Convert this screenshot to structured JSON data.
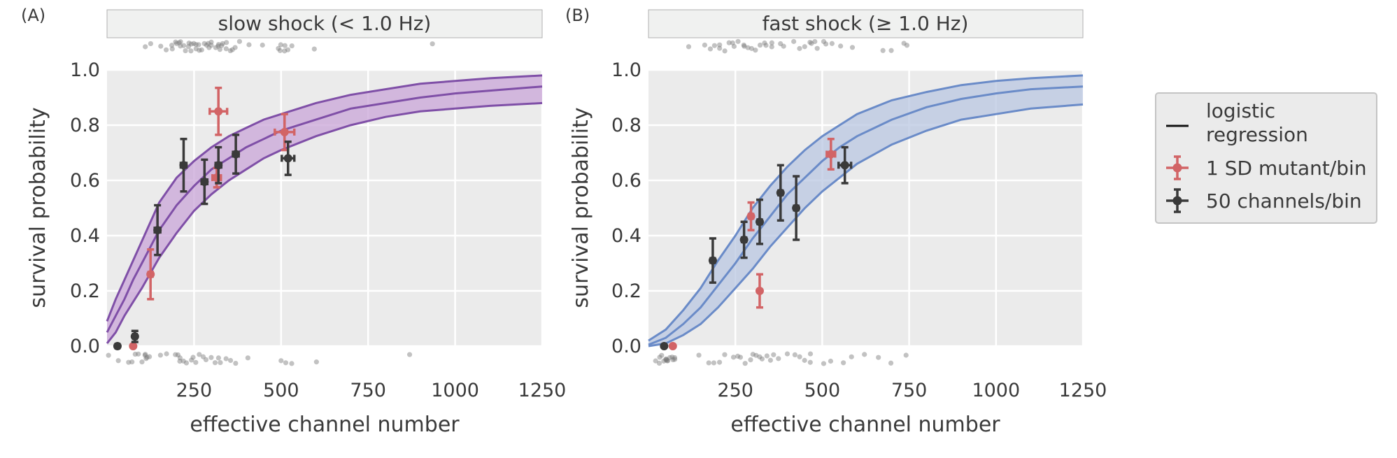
{
  "colors": {
    "panel_bg": "#ebebeb",
    "grid": "#ffffff",
    "strip_bg": "#f0f1f0",
    "purple_line": "#7f4fa7",
    "purple_fill": "#c9a5d8",
    "blue_line": "#6a8bc8",
    "blue_fill": "#b9c7e2",
    "red": "#d26466",
    "dark": "#3a3a3a",
    "raw_points": "#777777"
  },
  "legend": {
    "title": "",
    "items": [
      {
        "label_lines": [
          "logistic",
          "regression"
        ],
        "marker": "line",
        "color": "#111111"
      },
      {
        "label_lines": [
          "1 SD mutant/bin"
        ],
        "marker": "errorbar-point",
        "color": "#d26466"
      },
      {
        "label_lines": [
          "50 channels/bin"
        ],
        "marker": "errorbar-point",
        "color": "#3a3a3a"
      }
    ]
  },
  "chart_data": [
    {
      "type": "scatter",
      "panel_tag": "(A)",
      "strip_title": "slow shock (< 1.0 Hz)",
      "xlabel": "effective channel number",
      "ylabel": "survival probability",
      "xlim": [
        0,
        1250
      ],
      "ylim": [
        0,
        1.0
      ],
      "xticks": [
        250,
        500,
        750,
        1000,
        1250
      ],
      "yticks": [
        0.0,
        0.2,
        0.4,
        0.6,
        0.8,
        1.0
      ],
      "grid": true,
      "series_color": "purple",
      "logistic_fit": {
        "x": [
          0,
          25,
          50,
          75,
          100,
          150,
          200,
          250,
          300,
          350,
          400,
          450,
          500,
          600,
          700,
          800,
          900,
          1000,
          1100,
          1250
        ],
        "y": [
          0.05,
          0.11,
          0.17,
          0.24,
          0.3,
          0.42,
          0.51,
          0.58,
          0.64,
          0.68,
          0.72,
          0.75,
          0.78,
          0.82,
          0.86,
          0.88,
          0.9,
          0.915,
          0.925,
          0.94
        ],
        "lower": [
          0.01,
          0.05,
          0.11,
          0.16,
          0.21,
          0.32,
          0.41,
          0.49,
          0.55,
          0.6,
          0.64,
          0.68,
          0.71,
          0.76,
          0.8,
          0.83,
          0.85,
          0.86,
          0.87,
          0.88
        ],
        "upper": [
          0.09,
          0.17,
          0.24,
          0.31,
          0.38,
          0.52,
          0.61,
          0.67,
          0.72,
          0.76,
          0.79,
          0.82,
          0.84,
          0.88,
          0.91,
          0.93,
          0.95,
          0.96,
          0.97,
          0.98
        ]
      },
      "binned_1sd": [
        {
          "x": 75,
          "y": 0.0,
          "yerr": 0.0,
          "xerr": 0
        },
        {
          "x": 125,
          "y": 0.26,
          "yerr": 0.09,
          "xerr": 6
        },
        {
          "x": 320,
          "y": 0.85,
          "yerr": 0.085,
          "xerr": 25
        },
        {
          "x": 315,
          "y": 0.61,
          "yerr": 0.035,
          "xerr": 12
        },
        {
          "x": 510,
          "y": 0.775,
          "yerr": 0.065,
          "xerr": 28
        }
      ],
      "binned_50ch": [
        {
          "x": 30,
          "y": 0.0,
          "yerr": 0.0,
          "xerr": 5
        },
        {
          "x": 80,
          "y": 0.035,
          "yerr": 0.02,
          "xerr": 5
        },
        {
          "x": 145,
          "y": 0.42,
          "yerr": 0.09,
          "xerr": 8
        },
        {
          "x": 220,
          "y": 0.655,
          "yerr": 0.095,
          "xerr": 8
        },
        {
          "x": 280,
          "y": 0.595,
          "yerr": 0.08,
          "xerr": 8
        },
        {
          "x": 320,
          "y": 0.655,
          "yerr": 0.065,
          "xerr": 8
        },
        {
          "x": 370,
          "y": 0.695,
          "yerr": 0.07,
          "xerr": 8
        },
        {
          "x": 520,
          "y": 0.68,
          "yerr": 0.06,
          "xerr": 18
        }
      ],
      "raw_top_x": [
        110,
        130,
        155,
        175,
        185,
        190,
        195,
        200,
        205,
        210,
        215,
        220,
        225,
        230,
        235,
        240,
        245,
        250,
        255,
        260,
        265,
        270,
        275,
        280,
        285,
        290,
        295,
        300,
        305,
        310,
        315,
        320,
        325,
        330,
        335,
        340,
        345,
        350,
        355,
        365,
        380,
        410,
        450,
        490,
        500,
        505,
        510,
        515,
        520,
        530,
        600,
        930
      ],
      "raw_bottom_x": [
        10,
        30,
        60,
        75,
        85,
        95,
        100,
        105,
        110,
        115,
        120,
        125,
        150,
        175,
        195,
        205,
        210,
        215,
        220,
        230,
        240,
        250,
        260,
        270,
        280,
        290,
        300,
        310,
        320,
        330,
        340,
        350,
        370,
        400,
        500,
        510,
        530,
        600,
        870
      ]
    },
    {
      "type": "scatter",
      "panel_tag": "(B)",
      "strip_title": "fast shock (≥ 1.0 Hz)",
      "xlabel": "effective channel number",
      "ylabel": "survival probability",
      "xlim": [
        0,
        1250
      ],
      "ylim": [
        0,
        1.0
      ],
      "xticks": [
        250,
        500,
        750,
        1000,
        1250
      ],
      "yticks": [
        0.0,
        0.2,
        0.4,
        0.6,
        0.8,
        1.0
      ],
      "grid": true,
      "series_color": "blue",
      "logistic_fit": {
        "x": [
          0,
          50,
          100,
          150,
          200,
          250,
          300,
          350,
          400,
          450,
          500,
          550,
          600,
          700,
          800,
          900,
          1000,
          1100,
          1250
        ],
        "y": [
          0.005,
          0.03,
          0.08,
          0.14,
          0.22,
          0.3,
          0.39,
          0.47,
          0.55,
          0.61,
          0.67,
          0.72,
          0.76,
          0.82,
          0.865,
          0.895,
          0.915,
          0.93,
          0.94
        ],
        "lower": [
          0.0,
          0.01,
          0.04,
          0.08,
          0.14,
          0.21,
          0.28,
          0.36,
          0.43,
          0.5,
          0.56,
          0.61,
          0.66,
          0.73,
          0.78,
          0.82,
          0.84,
          0.86,
          0.875
        ],
        "upper": [
          0.02,
          0.06,
          0.13,
          0.21,
          0.31,
          0.4,
          0.5,
          0.58,
          0.65,
          0.71,
          0.76,
          0.8,
          0.84,
          0.89,
          0.92,
          0.945,
          0.96,
          0.97,
          0.98
        ]
      },
      "binned_1sd": [
        {
          "x": 70,
          "y": 0.0,
          "yerr": 0.0,
          "xerr": 0
        },
        {
          "x": 295,
          "y": 0.47,
          "yerr": 0.05,
          "xerr": 6
        },
        {
          "x": 320,
          "y": 0.2,
          "yerr": 0.06,
          "xerr": 0
        },
        {
          "x": 525,
          "y": 0.695,
          "yerr": 0.055,
          "xerr": 12
        }
      ],
      "binned_50ch": [
        {
          "x": 45,
          "y": 0.0,
          "yerr": 0.0,
          "xerr": 3
        },
        {
          "x": 185,
          "y": 0.31,
          "yerr": 0.08,
          "xerr": 6
        },
        {
          "x": 275,
          "y": 0.385,
          "yerr": 0.065,
          "xerr": 6
        },
        {
          "x": 320,
          "y": 0.45,
          "yerr": 0.08,
          "xerr": 6
        },
        {
          "x": 380,
          "y": 0.555,
          "yerr": 0.1,
          "xerr": 6
        },
        {
          "x": 425,
          "y": 0.5,
          "yerr": 0.115,
          "xerr": 6
        },
        {
          "x": 565,
          "y": 0.655,
          "yerr": 0.065,
          "xerr": 18
        }
      ],
      "raw_top_x": [
        110,
        160,
        175,
        190,
        200,
        210,
        220,
        230,
        240,
        250,
        260,
        270,
        280,
        290,
        300,
        310,
        320,
        330,
        340,
        350,
        360,
        380,
        390,
        420,
        440,
        450,
        460,
        470,
        480,
        490,
        500,
        510,
        530,
        550,
        590,
        670,
        700,
        740,
        740
      ],
      "raw_bottom_x": [
        25,
        30,
        35,
        40,
        45,
        50,
        55,
        60,
        65,
        70,
        75,
        80,
        40,
        50,
        60,
        150,
        175,
        185,
        205,
        220,
        240,
        260,
        270,
        280,
        290,
        300,
        310,
        320,
        330,
        340,
        350,
        360,
        380,
        400,
        420,
        440,
        450,
        460,
        470,
        500,
        520,
        560,
        590,
        620,
        660,
        700,
        740
      ]
    }
  ]
}
